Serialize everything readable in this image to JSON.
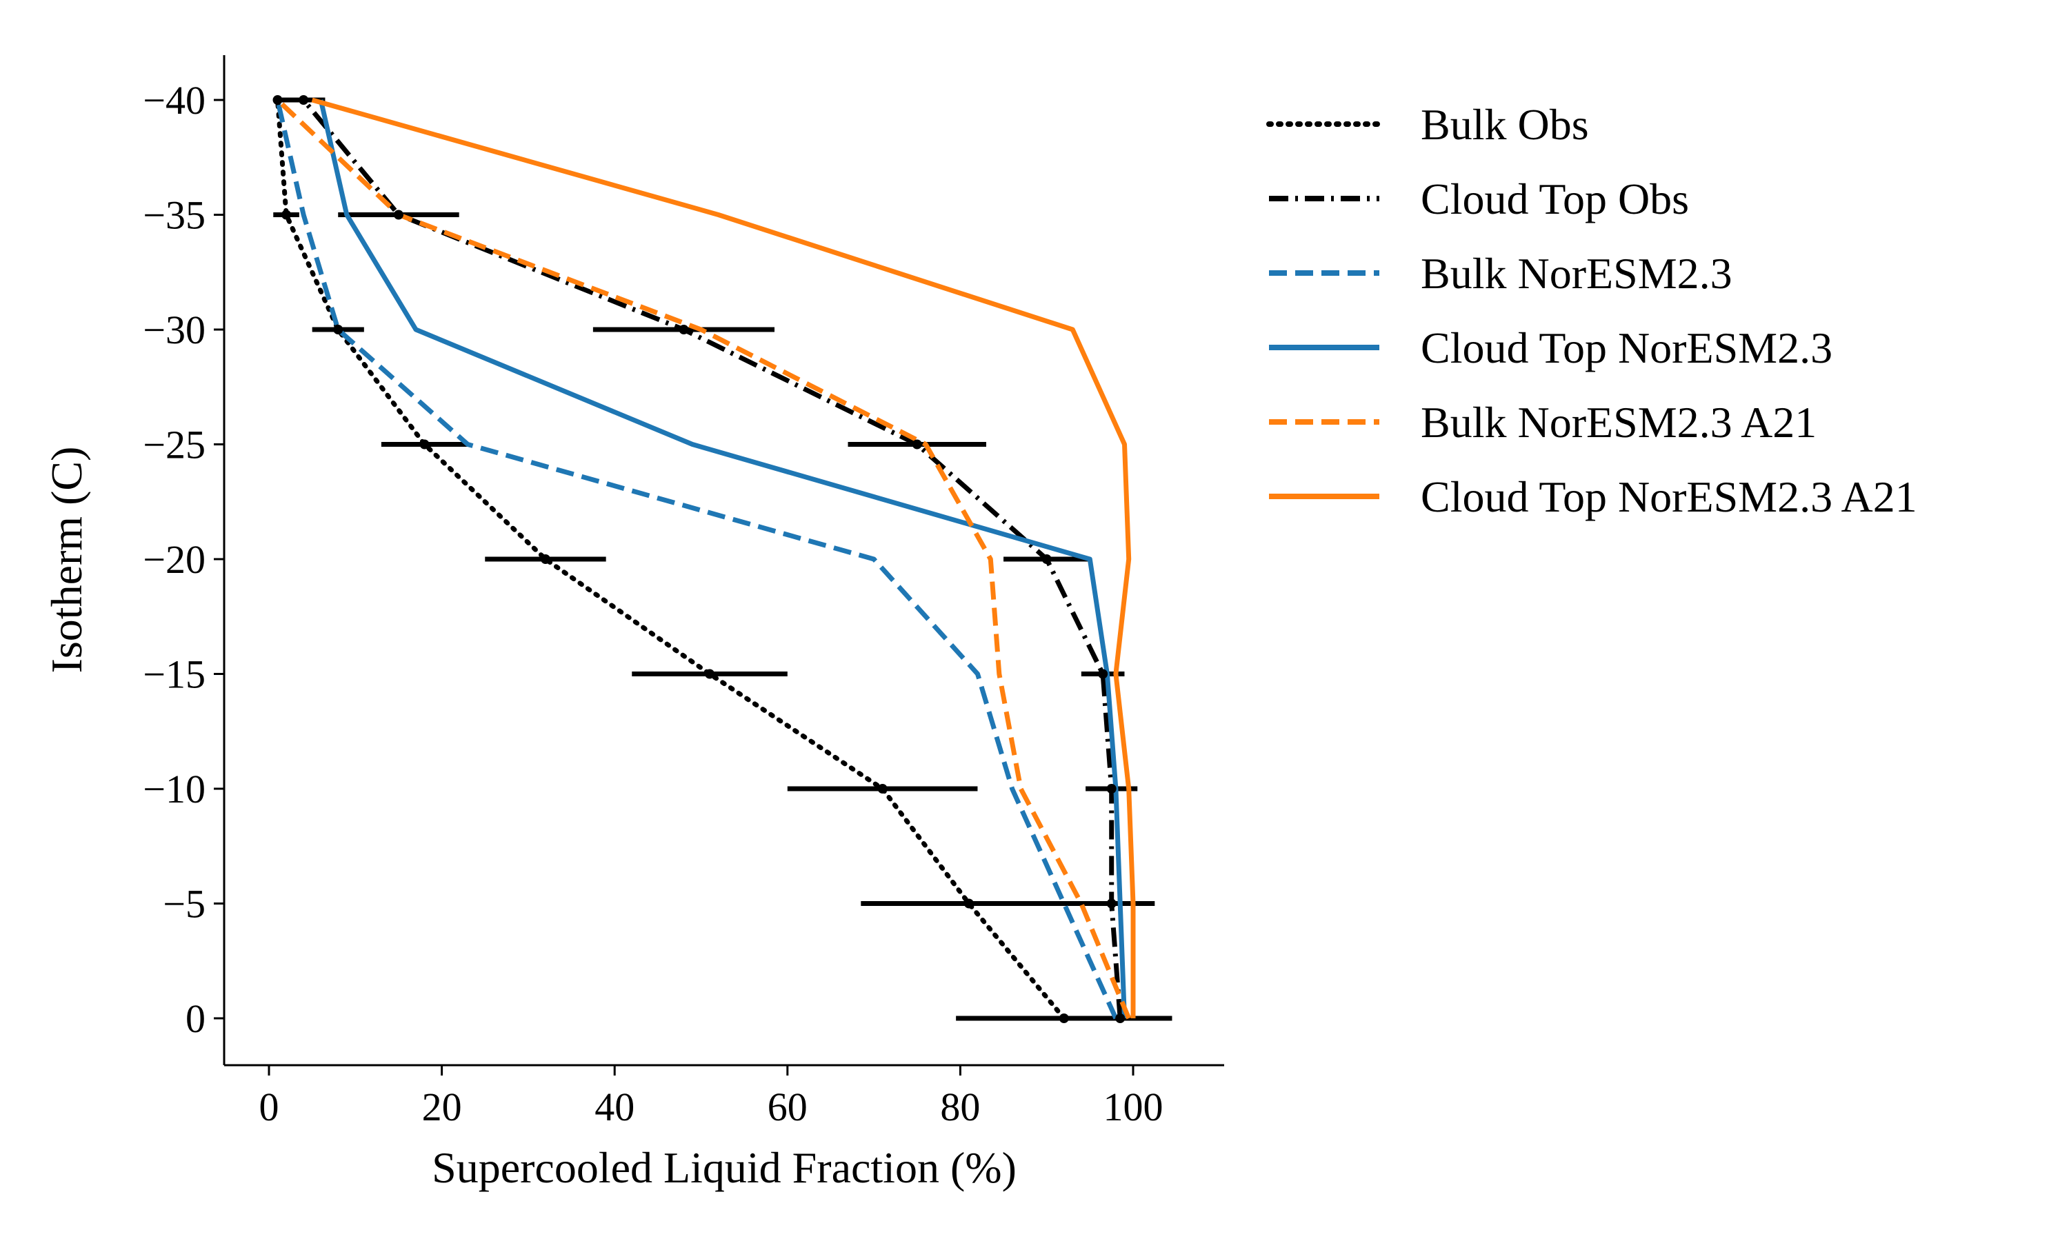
{
  "chart_data": {
    "type": "line",
    "xlabel": "Supercooled Liquid Fraction (%)",
    "ylabel": "Isotherm (C)",
    "xlim": [
      -5,
      110
    ],
    "ylim": [
      2,
      -42
    ],
    "y_inverted": true,
    "xticks": [
      0,
      20,
      40,
      60,
      80,
      100
    ],
    "yticks": [
      -40,
      -35,
      -30,
      -25,
      -20,
      -15,
      -10,
      -5,
      0
    ],
    "xtick_labels": [
      "0",
      "20",
      "40",
      "60",
      "80",
      "100"
    ],
    "ytick_labels": [
      "−40",
      "−35",
      "−30",
      "−25",
      "−20",
      "−15",
      "−10",
      "−5",
      "0"
    ],
    "grid": false,
    "legend": "outside-right-top",
    "series": [
      {
        "name": "Bulk Obs",
        "color": "#000000",
        "linestyle": "dotted",
        "x": [
          92,
          81,
          71,
          51,
          32,
          18,
          8,
          2,
          1
        ],
        "y": [
          0,
          -5,
          -10,
          -15,
          -20,
          -25,
          -30,
          -35,
          -40
        ],
        "error_halfwidth": [
          12.5,
          12.5,
          11,
          9,
          7,
          5,
          3,
          1.5,
          0
        ]
      },
      {
        "name": "Cloud Top Obs",
        "color": "#000000",
        "linestyle": "dashdot",
        "x": [
          98.5,
          97.5,
          97.5,
          96.5,
          90,
          75,
          48,
          15,
          4
        ],
        "y": [
          0,
          -5,
          -10,
          -15,
          -20,
          -25,
          -30,
          -35,
          -40
        ],
        "error_halfwidth": [
          6,
          5,
          3,
          2.5,
          5,
          8,
          10.5,
          7,
          2.5
        ]
      },
      {
        "name": "Bulk NorESM2.3",
        "color": "#1f77b4",
        "linestyle": "dashed",
        "x": [
          98,
          92,
          86,
          82,
          70,
          23,
          8,
          4,
          1
        ],
        "y": [
          0,
          -5,
          -10,
          -15,
          -20,
          -25,
          -30,
          -35,
          -40
        ]
      },
      {
        "name": "Cloud Top NorESM2.3",
        "color": "#1f77b4",
        "linestyle": "solid",
        "x": [
          99,
          98.5,
          98,
          97,
          95,
          49,
          17,
          9,
          6
        ],
        "y": [
          0,
          -5,
          -10,
          -15,
          -20,
          -25,
          -30,
          -35,
          -40
        ]
      },
      {
        "name": "Bulk NorESM2.3 A21",
        "color": "#ff7f0e",
        "linestyle": "dashed",
        "x": [
          99.5,
          94,
          87,
          84.5,
          83.5,
          76,
          50,
          15,
          1
        ],
        "y": [
          0,
          -5,
          -10,
          -15,
          -20,
          -25,
          -30,
          -35,
          -40
        ]
      },
      {
        "name": "Cloud Top NorESM2.3 A21",
        "color": "#ff7f0e",
        "linestyle": "solid",
        "x": [
          100,
          100,
          99.5,
          98,
          99.5,
          99,
          93,
          52,
          5
        ],
        "y": [
          0,
          -5,
          -10,
          -15,
          -20,
          -25,
          -30,
          -35,
          -40
        ]
      }
    ]
  }
}
